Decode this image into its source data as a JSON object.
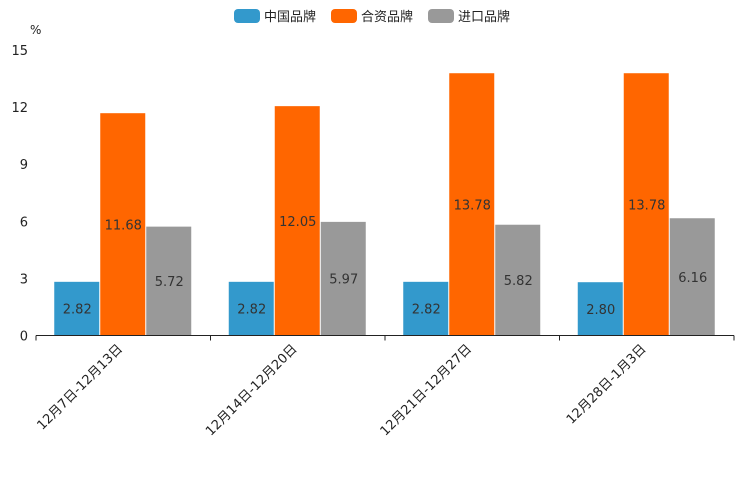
{
  "chart_data": {
    "type": "bar",
    "ylabel": "%",
    "ylim": [
      0,
      15
    ],
    "yticks": [
      0,
      3,
      6,
      9,
      12,
      15
    ],
    "legend_position": "top-center",
    "grid": false,
    "categories": [
      "12月7日-12月13日",
      "12月14日-12月20日",
      "12月21日-12月27日",
      "12月28日-1月3日"
    ],
    "series": [
      {
        "name": "中国品牌",
        "color": "#3399cc",
        "values": [
          2.82,
          2.82,
          2.82,
          2.8
        ],
        "labels": [
          "2.82",
          "2.82",
          "2.82",
          "2.80"
        ]
      },
      {
        "name": "合资品牌",
        "color": "#ff6600",
        "values": [
          11.68,
          12.05,
          13.78,
          13.78
        ],
        "labels": [
          "11.68",
          "12.05",
          "13.78",
          "13.78"
        ]
      },
      {
        "name": "进口品牌",
        "color": "#999999",
        "values": [
          5.72,
          5.97,
          5.82,
          6.16
        ],
        "labels": [
          "5.72",
          "5.97",
          "5.82",
          "6.16"
        ]
      }
    ]
  }
}
